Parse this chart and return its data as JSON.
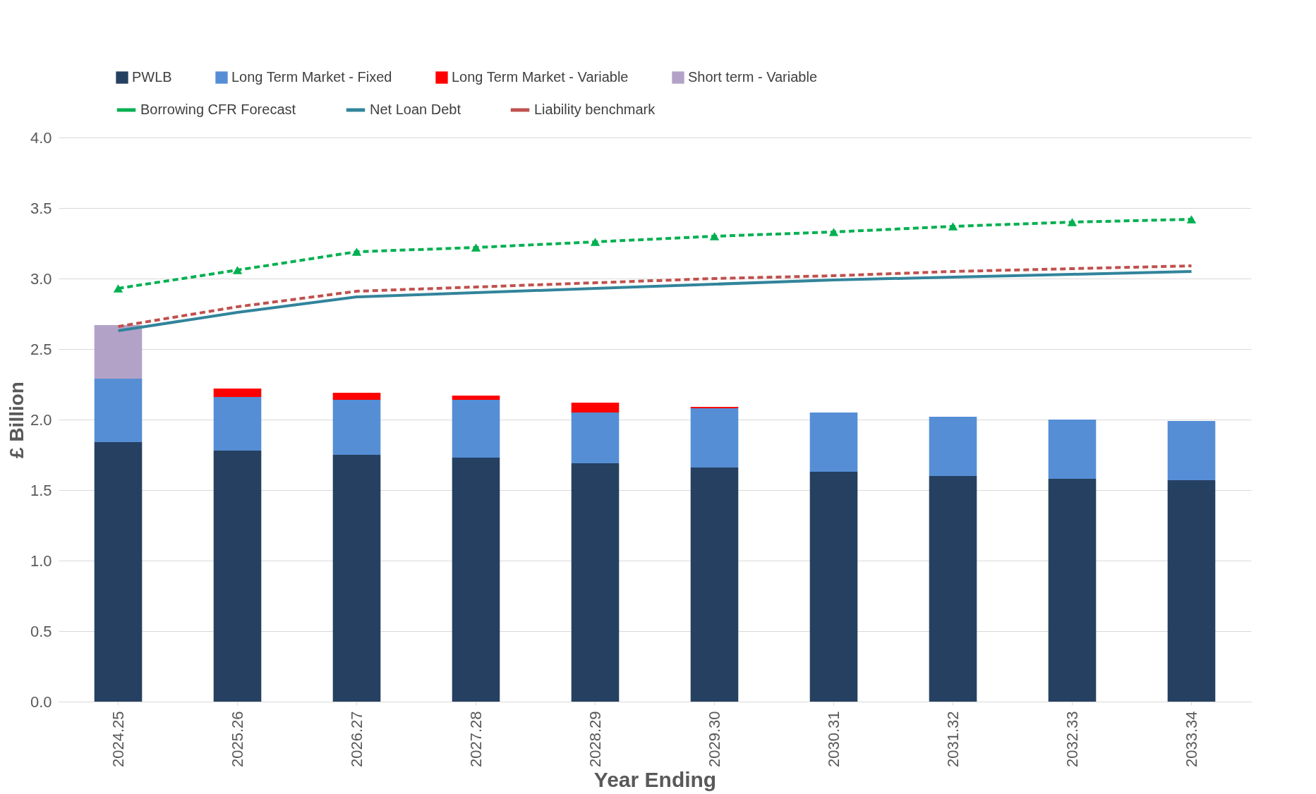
{
  "chart_data": {
    "type": "bar",
    "stacked": true,
    "xlabel": "Year Ending",
    "ylabel": "£ Billion",
    "categories": [
      "2024.25",
      "2025.26",
      "2026.27",
      "2027.28",
      "2028.29",
      "2029.30",
      "2030.31",
      "2031.32",
      "2032.33",
      "2033.34"
    ],
    "series": [
      {
        "name": "PWLB",
        "color": "#264061",
        "values": [
          1.84,
          1.78,
          1.75,
          1.73,
          1.69,
          1.66,
          1.63,
          1.6,
          1.58,
          1.57
        ]
      },
      {
        "name": "Long Term Market - Fixed",
        "color": "#558ed5",
        "values": [
          0.45,
          0.38,
          0.39,
          0.41,
          0.36,
          0.42,
          0.42,
          0.42,
          0.42,
          0.42
        ]
      },
      {
        "name": "Long Term Market - Variable",
        "color": "#ff0000",
        "values": [
          0,
          0.06,
          0.05,
          0.03,
          0.07,
          0.01,
          0,
          0,
          0,
          0
        ]
      },
      {
        "name": "Short term - Variable",
        "color": "#b3a2c7",
        "values": [
          0.38,
          0,
          0,
          0,
          0,
          0,
          0,
          0,
          0,
          0
        ]
      },
      {
        "name": "Borrowing CFR Forecast",
        "type": "line",
        "line_style": "dashed",
        "marker": "triangle",
        "color": "#00b050",
        "values": [
          2.93,
          3.06,
          3.19,
          3.22,
          3.26,
          3.3,
          3.33,
          3.37,
          3.4,
          3.42
        ]
      },
      {
        "name": "Net Loan Debt",
        "type": "line",
        "line_style": "solid",
        "color": "#31849b",
        "values": [
          2.63,
          2.76,
          2.87,
          2.9,
          2.93,
          2.96,
          2.99,
          3.01,
          3.03,
          3.05
        ]
      },
      {
        "name": "Liability benchmark",
        "type": "line",
        "line_style": "dashed",
        "color": "#c0504d",
        "values": [
          2.66,
          2.8,
          2.91,
          2.94,
          2.97,
          3.0,
          3.02,
          3.05,
          3.07,
          3.09
        ]
      }
    ],
    "ylim": [
      0,
      4
    ],
    "yticks": [
      {
        "value": 0,
        "label": "0.0"
      },
      0.5,
      {
        "value": 1,
        "label": "1.0"
      },
      1.5,
      {
        "value": 2,
        "label": "2.0"
      },
      2.5,
      {
        "value": 3,
        "label": "3.0"
      },
      3.5,
      {
        "value": 4,
        "label": "4.0"
      }
    ],
    "grid": "y",
    "legend": "top"
  }
}
